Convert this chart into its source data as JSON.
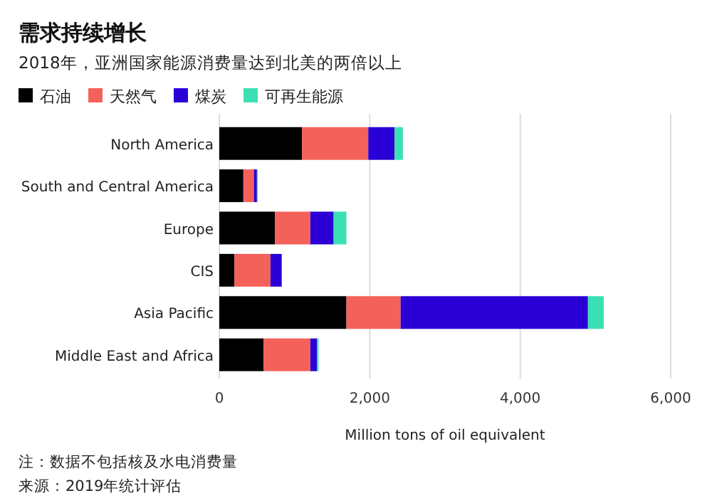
{
  "chart_data": {
    "type": "bar",
    "orientation": "horizontal",
    "stacked": true,
    "title": "需求持续增长",
    "subtitle": "2018年，亚洲国家能源消费量达到北美的两倍以上",
    "xlabel": "Million tons of oil equivalent",
    "categories": [
      "North America",
      "South and Central America",
      "Europe",
      "CIS",
      "Asia Pacific",
      "Middle East and Africa"
    ],
    "series": [
      {
        "name": "石油",
        "color": "#000000",
        "values": [
          1100,
          320,
          740,
          200,
          1690,
          590
        ]
      },
      {
        "name": "天然气",
        "color": "#f4615a",
        "values": [
          880,
          140,
          470,
          480,
          720,
          620
        ]
      },
      {
        "name": "煤炭",
        "color": "#2b00d6",
        "values": [
          350,
          40,
          310,
          150,
          2490,
          90
        ]
      },
      {
        "name": "可再生能源",
        "color": "#3ae0b4",
        "values": [
          110,
          10,
          170,
          0,
          210,
          20
        ]
      }
    ],
    "xlim": [
      0,
      6000
    ],
    "xticks": [
      {
        "value": 0,
        "label": "0"
      },
      {
        "value": 2000,
        "label": "2,000"
      },
      {
        "value": 4000,
        "label": "4,000"
      },
      {
        "value": 6000,
        "label": "6,000"
      }
    ],
    "grid": "x",
    "legend": "top left",
    "annotations": [
      "注：数据不包括核及水电消费量",
      "来源：2019年统计评估"
    ]
  }
}
